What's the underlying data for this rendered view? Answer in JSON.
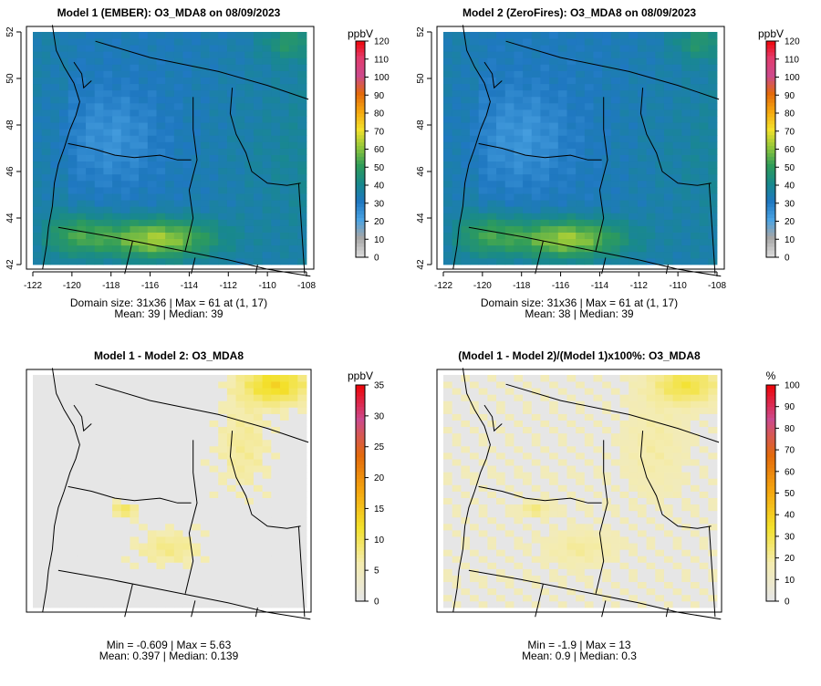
{
  "chart_data": [
    {
      "type": "heatmap",
      "title": "Model 1 (EMBER): O3_MDA8 on 08/09/2023",
      "xlim": [
        -122,
        -108
      ],
      "ylim": [
        42,
        52
      ],
      "x_ticks": [
        "-122",
        "-120",
        "-118",
        "-116",
        "-114",
        "-112",
        "-110",
        "-108"
      ],
      "y_ticks": [
        "42",
        "44",
        "46",
        "48",
        "50",
        "52"
      ],
      "grid": "31x36",
      "colorbar": {
        "unit": "ppbV",
        "min": 0,
        "max": 120,
        "ticks": [
          "0",
          "10",
          "20",
          "30",
          "40",
          "50",
          "60",
          "70",
          "80",
          "90",
          "100",
          "110",
          "120"
        ]
      },
      "stats": [
        "Domain size: 31x36 | Max = 61 at (1, 17)",
        "Mean: 39 |  Median: 39"
      ],
      "stat_values": {
        "max": 61,
        "mean": 39,
        "median": 39
      }
    },
    {
      "type": "heatmap",
      "title": "Model 2 (ZeroFires): O3_MDA8 on 08/09/2023",
      "xlim": [
        -122,
        -108
      ],
      "ylim": [
        42,
        52
      ],
      "x_ticks": [
        "-122",
        "-120",
        "-118",
        "-116",
        "-114",
        "-112",
        "-110",
        "-108"
      ],
      "y_ticks": [
        "42",
        "44",
        "46",
        "48",
        "50",
        "52"
      ],
      "grid": "31x36",
      "colorbar": {
        "unit": "ppbV",
        "min": 0,
        "max": 120,
        "ticks": [
          "0",
          "10",
          "20",
          "30",
          "40",
          "50",
          "60",
          "70",
          "80",
          "90",
          "100",
          "110",
          "120"
        ]
      },
      "stats": [
        "Domain size: 31x36 | Max = 61 at (1, 17)",
        "Mean: 38 |  Median: 39"
      ],
      "stat_values": {
        "max": 61,
        "mean": 38,
        "median": 39
      }
    },
    {
      "type": "heatmap",
      "title": "Model 1 - Model 2: O3_MDA8",
      "colorbar": {
        "unit": "ppbV",
        "min": 0,
        "max": 35,
        "ticks": [
          "0",
          "5",
          "10",
          "15",
          "20",
          "25",
          "30",
          "35"
        ]
      },
      "stats": [
        "Min = -0.609 | Max = 5.63",
        "Mean: 0.397 |  Median: 0.139"
      ],
      "stat_values": {
        "min": -0.609,
        "max": 5.63,
        "mean": 0.397,
        "median": 0.139
      }
    },
    {
      "type": "heatmap",
      "title": "(Model 1 - Model 2)/(Model 1)x100%: O3_MDA8",
      "colorbar": {
        "unit": "%",
        "min": 0,
        "max": 100,
        "ticks": [
          "0",
          "10",
          "20",
          "30",
          "40",
          "50",
          "60",
          "70",
          "80",
          "90",
          "100"
        ]
      },
      "stats": [
        "Min = -1.9 | Max = 13",
        "Mean: 0.9 |  Median: 0.3"
      ],
      "stat_values": {
        "min": -1.9,
        "max": 13,
        "mean": 0.9,
        "median": 0.3
      }
    }
  ],
  "colors": {
    "ozone_scale": [
      "#d9d9d9",
      "#a6a6a6",
      "#4ba3e3",
      "#1f78c1",
      "#18898c",
      "#2e9c5a",
      "#8fc63b",
      "#f3e12c",
      "#f5a70f",
      "#e36a0c",
      "#cc4a8d",
      "#e33b6b",
      "#f00000"
    ],
    "diff_scale": [
      "#e6e6e6",
      "#f4ecb0",
      "#f3e12c",
      "#f5a70f",
      "#e36a0c",
      "#cc4a8d",
      "#f00000"
    ]
  }
}
